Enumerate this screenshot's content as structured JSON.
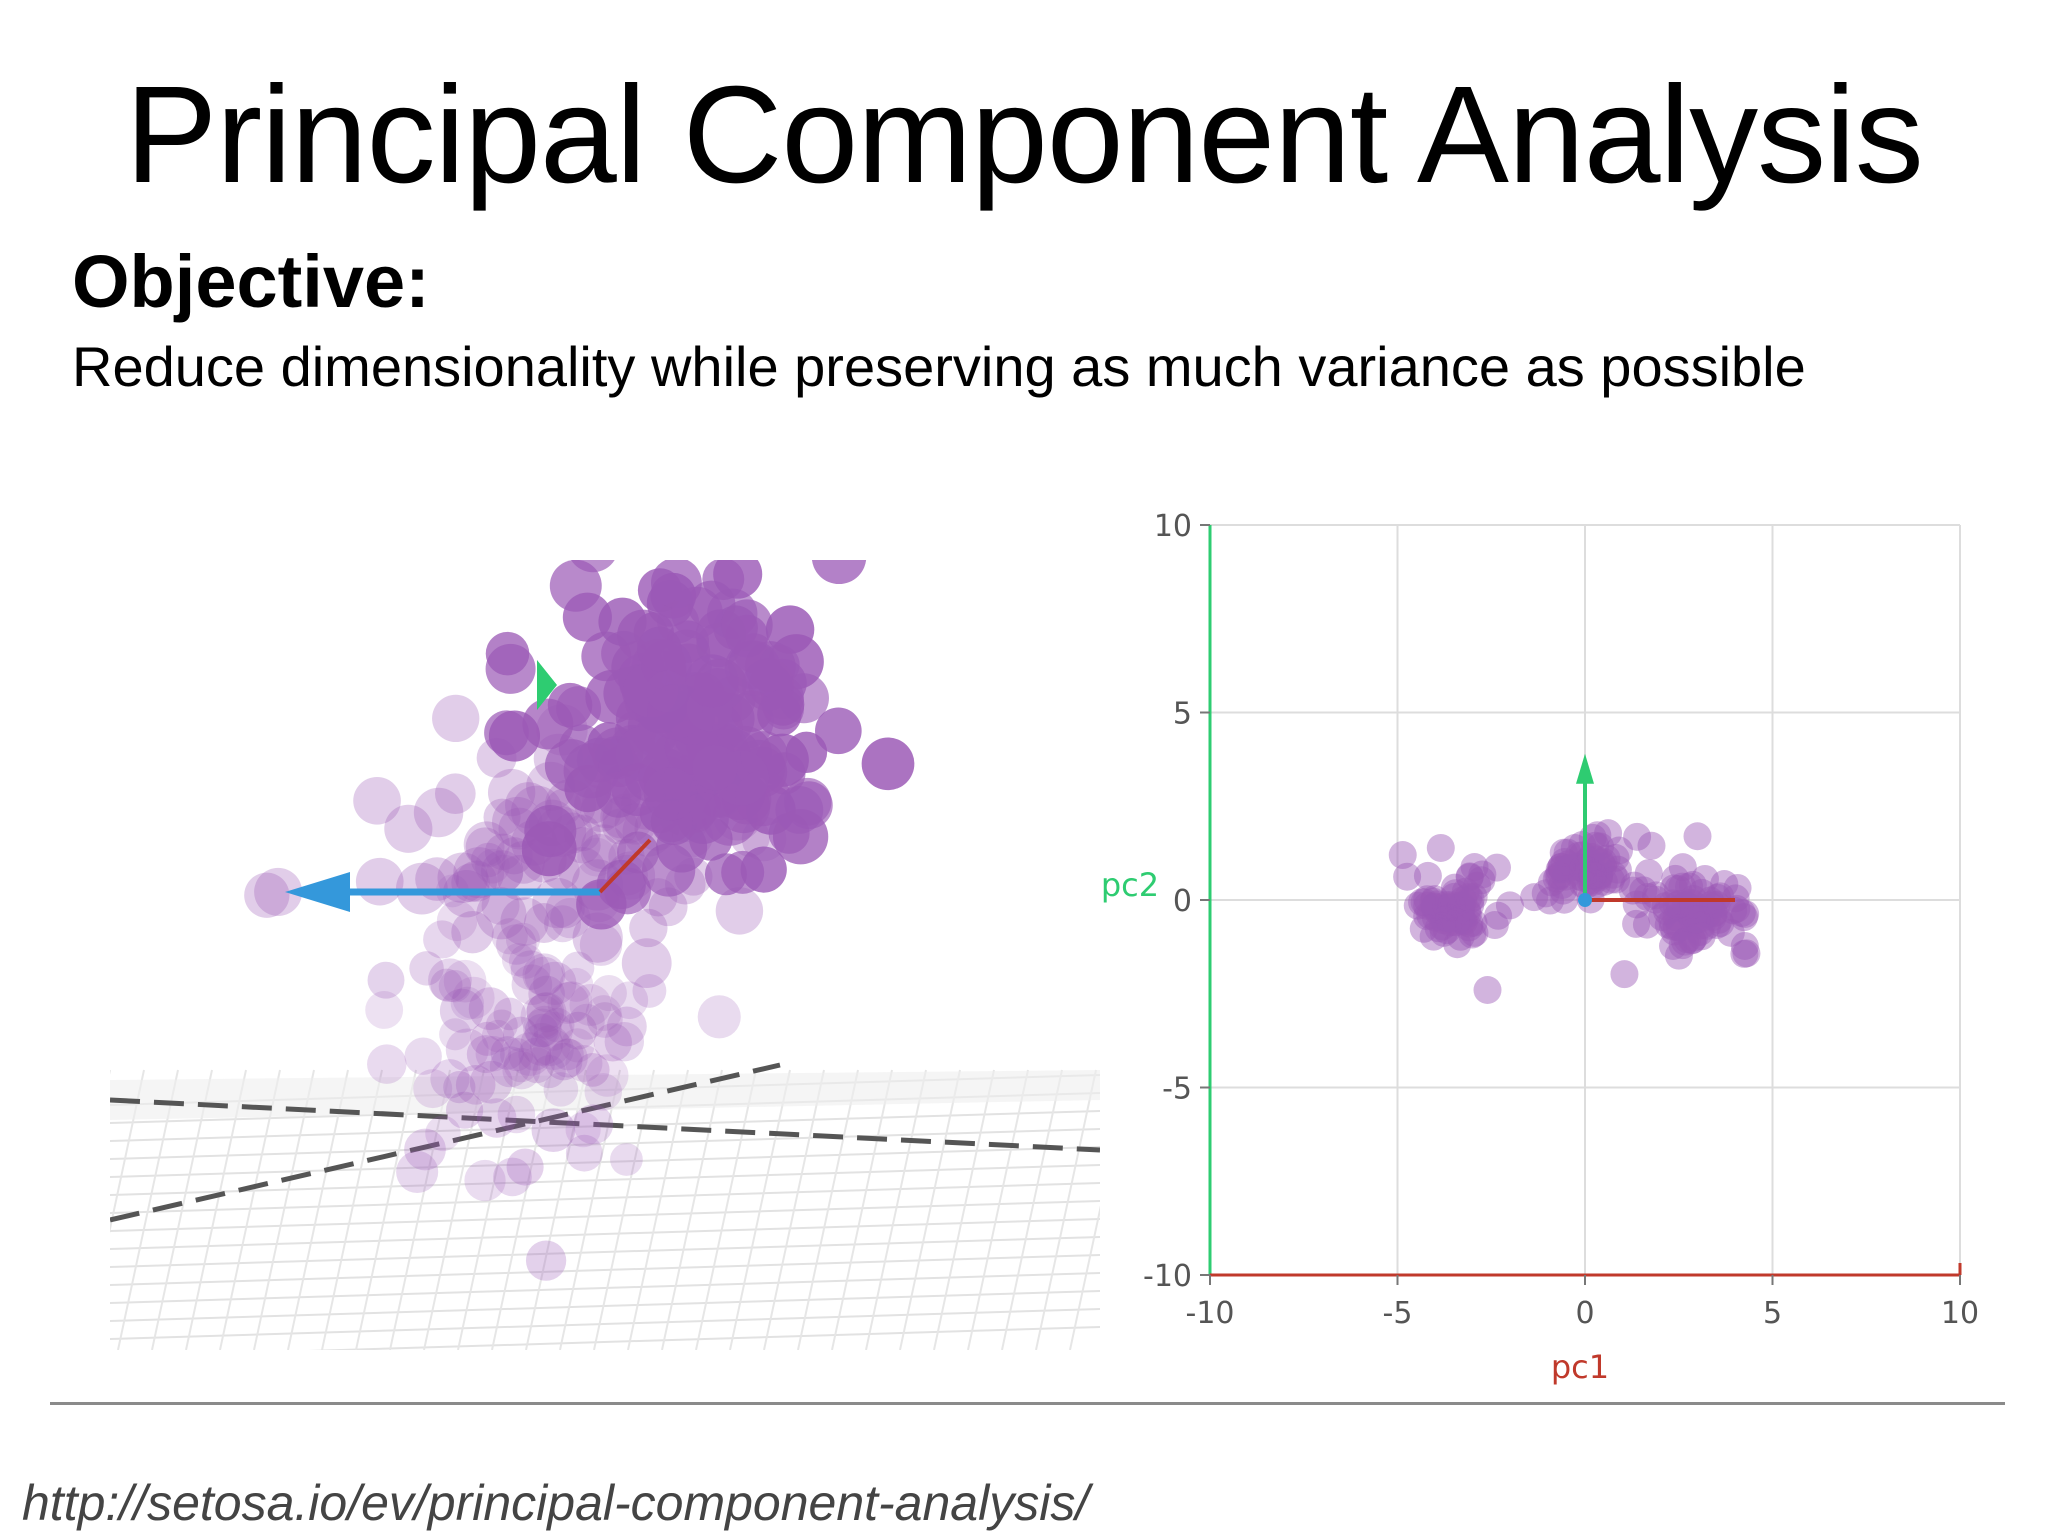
{
  "slide": {
    "title": "Principal Component Analysis",
    "objective_heading": "Objective:",
    "objective_text": "Reduce dimensionality while preserving as much variance as possible",
    "source_url": "http://setosa.io/ev/principal-component-analysis/"
  },
  "colors": {
    "point": "#9b59b6",
    "pc1_axis": "#c0392b",
    "pc2_axis": "#2ecc71",
    "pc3_arrow": "#3498db",
    "grid": "#dddddd",
    "tick_text": "#555555"
  },
  "chart_data": [
    {
      "type": "scatter",
      "view": "3d",
      "title": "",
      "note": "3D scatter of points with three principal component arrows",
      "series": [
        {
          "values": []
        }
      ]
    },
    {
      "type": "scatter",
      "view": "2d",
      "title": "",
      "xlabel": "pc1",
      "ylabel": "pc2",
      "xlim": [
        -10,
        10
      ],
      "ylim": [
        -10,
        10
      ],
      "xticks": [
        "-10",
        "-5",
        "0",
        "5",
        "10"
      ],
      "yticks": [
        "10",
        "5",
        "0",
        "-5",
        "-10"
      ],
      "grid": true,
      "clusters": [
        {
          "center": [
            -3.5,
            -0.2
          ],
          "spread": [
            1.1,
            0.8
          ],
          "count": 70
        },
        {
          "center": [
            0.0,
            0.8
          ],
          "spread": [
            1.2,
            0.8
          ],
          "count": 70
        },
        {
          "center": [
            3.0,
            -0.3
          ],
          "spread": [
            1.2,
            0.8
          ],
          "count": 80
        }
      ],
      "extra_points": [
        [
          -2.6,
          -2.4
        ],
        [
          3.0,
          1.7
        ]
      ],
      "pc1_vector": [
        4.0,
        0.0
      ],
      "pc2_vector": [
        0.0,
        3.9
      ]
    }
  ]
}
